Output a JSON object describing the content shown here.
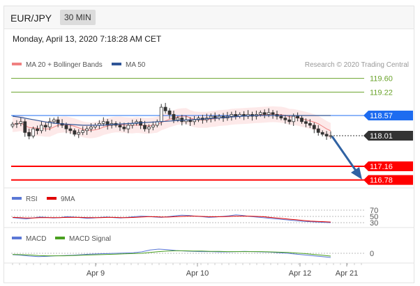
{
  "header": {
    "pair": "EUR/JPY",
    "timeframe": "30 MIN"
  },
  "timestamp": "Monday, April 13, 2020 7:18:28 AM CET",
  "legend": {
    "ma20": "MA 20 + Bollinger Bands",
    "ma50": "MA 50",
    "credit": "Research © 2020 Trading Central",
    "rsi": "RSI",
    "rsi_ma": "9MA",
    "macd": "MACD",
    "macd_signal": "MACD Signal"
  },
  "colors": {
    "ma20": "#f08080",
    "ma50": "#2f5597",
    "resistance": "#6aa32b",
    "support": "#ff0000",
    "pivot": "#1e6cf0",
    "last_price": "#333333",
    "arrow": "#3062a3",
    "rsi": "#5b78d6",
    "rsi_ma": "#e00000",
    "macd": "#5b78d6",
    "macd_signal": "#4aa020"
  },
  "chart_data": [
    {
      "type": "candlestick",
      "title": "EUR/JPY 30 MIN",
      "x_ticks": [
        "Apr 9",
        "Apr 10",
        "Apr 12",
        "Apr 21"
      ],
      "ylim": [
        116.5,
        119.9
      ],
      "levels": [
        {
          "value": 119.6,
          "label": "119.60",
          "kind": "resistance"
        },
        {
          "value": 119.22,
          "label": "119.22",
          "kind": "resistance"
        },
        {
          "value": 118.57,
          "label": "118.57",
          "kind": "pivot"
        },
        {
          "value": 118.01,
          "label": "118.01",
          "kind": "last"
        },
        {
          "value": 117.16,
          "label": "117.16",
          "kind": "support"
        },
        {
          "value": 116.78,
          "label": "116.78",
          "kind": "support"
        }
      ],
      "close": [
        118.33,
        118.35,
        118.4,
        118.1,
        118.0,
        118.2,
        118.15,
        118.3,
        118.25,
        118.4,
        118.45,
        118.35,
        118.3,
        118.2,
        118.15,
        118.05,
        118.1,
        118.15,
        118.2,
        118.25,
        118.3,
        118.35,
        118.4,
        118.3,
        118.35,
        118.3,
        118.25,
        118.2,
        118.3,
        118.35,
        118.4,
        118.3,
        118.2,
        118.25,
        118.3,
        118.4,
        118.8,
        118.7,
        118.6,
        118.45,
        118.5,
        118.4,
        118.45,
        118.4,
        118.45,
        118.5,
        118.45,
        118.5,
        118.55,
        118.5,
        118.55,
        118.5,
        118.55,
        118.6,
        118.55,
        118.6,
        118.55,
        118.6,
        118.55,
        118.6,
        118.65,
        118.6,
        118.65,
        118.6,
        118.55,
        118.5,
        118.45,
        118.4,
        118.55,
        118.5,
        118.4,
        118.35,
        118.3,
        118.2,
        118.1,
        118.05,
        118.0,
        118.01
      ],
      "ma50": [
        118.55,
        118.53,
        118.5,
        118.47,
        118.44,
        118.41,
        118.38,
        118.36,
        118.34,
        118.33,
        118.32,
        118.31,
        118.3,
        118.3,
        118.3,
        118.3,
        118.31,
        118.32,
        118.33,
        118.34,
        118.35,
        118.36,
        118.37,
        118.38,
        118.39,
        118.4,
        118.41,
        118.42,
        118.43,
        118.44,
        118.45,
        118.46,
        118.47,
        118.48,
        118.49,
        118.5,
        118.52,
        118.53,
        118.54,
        118.55,
        118.56,
        118.57,
        118.57,
        118.57,
        118.57,
        118.57,
        118.57,
        118.57,
        118.57,
        118.57,
        118.57,
        118.57,
        118.57,
        118.57,
        118.57
      ],
      "bb_upper_width": 0.22
    },
    {
      "type": "line",
      "title": "RSI",
      "levels": [
        70,
        50,
        30
      ],
      "ylim": [
        20,
        80
      ],
      "series": [
        {
          "name": "RSI",
          "values": [
            46,
            44,
            42,
            45,
            48,
            47,
            45,
            46,
            49,
            48,
            46,
            44,
            45,
            47,
            48,
            46,
            45,
            47,
            49,
            51,
            50,
            48,
            47,
            49,
            52,
            54,
            53,
            51,
            49,
            47,
            48,
            50,
            52,
            55,
            53,
            50,
            48,
            46,
            44,
            42,
            40,
            38,
            36,
            34,
            33,
            32,
            31,
            30
          ]
        },
        {
          "name": "9MA",
          "values": [
            47,
            46,
            45,
            45,
            46,
            46,
            46,
            46,
            47,
            47,
            47,
            46,
            46,
            46,
            47,
            47,
            46,
            46,
            47,
            48,
            49,
            49,
            48,
            48,
            49,
            50,
            51,
            51,
            50,
            49,
            49,
            49,
            50,
            51,
            51,
            51,
            50,
            49,
            47,
            45,
            43,
            41,
            39,
            37,
            35,
            34,
            33,
            32
          ]
        }
      ]
    },
    {
      "type": "line",
      "title": "MACD",
      "levels": [
        0
      ],
      "ylim": [
        -0.3,
        0.3
      ],
      "series": [
        {
          "name": "MACD",
          "values": [
            -0.05,
            -0.07,
            -0.1,
            -0.12,
            -0.11,
            -0.09,
            -0.08,
            -0.07,
            -0.05,
            -0.03,
            -0.02,
            -0.01,
            0.0,
            0.01,
            0.02,
            0.05,
            0.12,
            0.15,
            0.13,
            0.1,
            0.08,
            0.07,
            0.06,
            0.06,
            0.05,
            0.05,
            0.06,
            0.07,
            0.06,
            0.05,
            0.04,
            0.02,
            0.0,
            -0.03,
            -0.06,
            -0.09,
            -0.12,
            -0.15
          ]
        },
        {
          "name": "MACD Signal",
          "values": [
            -0.04,
            -0.05,
            -0.06,
            -0.08,
            -0.09,
            -0.09,
            -0.09,
            -0.08,
            -0.07,
            -0.06,
            -0.05,
            -0.04,
            -0.03,
            -0.02,
            -0.01,
            0.0,
            0.03,
            0.06,
            0.08,
            0.09,
            0.09,
            0.08,
            0.08,
            0.07,
            0.07,
            0.06,
            0.06,
            0.06,
            0.06,
            0.06,
            0.05,
            0.04,
            0.03,
            0.01,
            -0.01,
            -0.04,
            -0.07,
            -0.1
          ]
        }
      ]
    }
  ]
}
